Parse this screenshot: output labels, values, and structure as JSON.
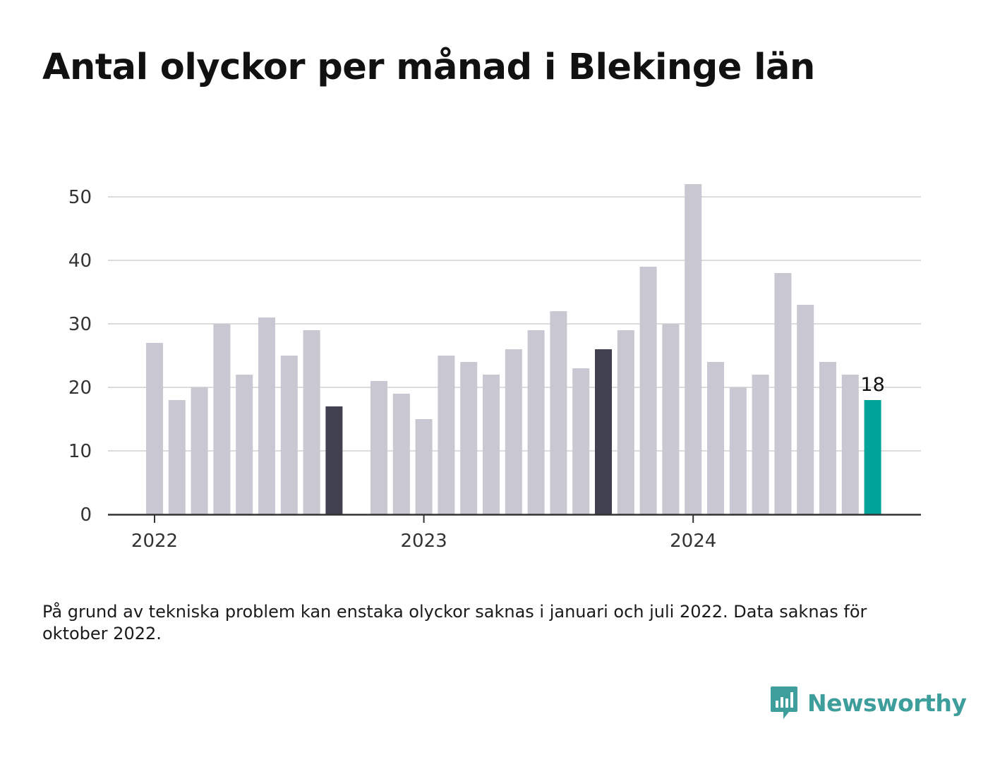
{
  "page": {
    "title": "Antal olyckor per månad i Blekinge län"
  },
  "chart_data": {
    "type": "bar",
    "title": "Antal olyckor per månad i Blekinge län",
    "xlabel": "",
    "ylabel": "",
    "ylim": [
      0,
      52
    ],
    "yticks": [
      0,
      10,
      20,
      30,
      40,
      50
    ],
    "x_tick_labels": [
      {
        "label": "2022",
        "month": "2022-01"
      },
      {
        "label": "2023",
        "month": "2023-01"
      },
      {
        "label": "2024",
        "month": "2024-01"
      }
    ],
    "categories": [
      "2022-01",
      "2022-02",
      "2022-03",
      "2022-04",
      "2022-05",
      "2022-06",
      "2022-07",
      "2022-08",
      "2022-09",
      "2022-10",
      "2022-11",
      "2022-12",
      "2023-01",
      "2023-02",
      "2023-03",
      "2023-04",
      "2023-05",
      "2023-06",
      "2023-07",
      "2023-08",
      "2023-09",
      "2023-10",
      "2023-11",
      "2023-12",
      "2024-01",
      "2024-02",
      "2024-03",
      "2024-04",
      "2024-05",
      "2024-06",
      "2024-07",
      "2024-08",
      "2024-09"
    ],
    "values": [
      27,
      18,
      20,
      30,
      22,
      31,
      25,
      29,
      17,
      null,
      21,
      19,
      15,
      25,
      24,
      22,
      26,
      29,
      32,
      23,
      26,
      29,
      39,
      30,
      52,
      24,
      20,
      22,
      38,
      33,
      24,
      22,
      18
    ],
    "highlight": [
      {
        "month": "2022-09",
        "color": "#41404e"
      },
      {
        "month": "2023-09",
        "color": "#41404e"
      },
      {
        "month": "2024-09",
        "color": "#00a39a",
        "label": "18"
      }
    ],
    "default_color": "#c8c7d2",
    "grid": true
  },
  "footnote": "På grund av tekniska problem kan enstaka olyckor saknas i januari och juli 2022. Data saknas för oktober 2022.",
  "brand": {
    "name": "Newsworthy",
    "color": "#3e9e9c",
    "icon": "newsworthy-logo-icon"
  }
}
